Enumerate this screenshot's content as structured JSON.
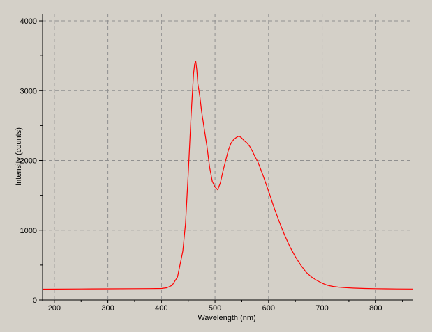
{
  "chart_data": {
    "type": "line",
    "title": "",
    "xlabel": "Wavelength (nm)",
    "ylabel": "Intensity (counts)",
    "xlim": [
      178,
      870
    ],
    "ylim": [
      0,
      4100
    ],
    "x_ticks": [
      200,
      300,
      400,
      500,
      600,
      700,
      800
    ],
    "y_ticks": [
      0,
      1000,
      2000,
      3000,
      4000
    ],
    "grid": true,
    "grid_style": "dashed",
    "background_color": "#d4d0c8",
    "line_color": "#ff0000",
    "series": [
      {
        "x": [
          178,
          250,
          300,
          350,
          380,
          400,
          410,
          420,
          430,
          440,
          445,
          450,
          455,
          458,
          460,
          462,
          464,
          466,
          468,
          470,
          472,
          475,
          478,
          480,
          485,
          490,
          495,
          500,
          505,
          510,
          515,
          520,
          525,
          530,
          535,
          540,
          545,
          550,
          555,
          560,
          565,
          570,
          575,
          580,
          590,
          600,
          610,
          620,
          630,
          640,
          650,
          660,
          670,
          680,
          690,
          700,
          710,
          720,
          730,
          740,
          760,
          780,
          800,
          820,
          840,
          870
        ],
        "y": [
          155,
          158,
          160,
          162,
          163,
          165,
          175,
          210,
          330,
          700,
          1100,
          1800,
          2600,
          3000,
          3250,
          3380,
          3420,
          3300,
          3100,
          3000,
          2900,
          2700,
          2550,
          2450,
          2200,
          1900,
          1700,
          1620,
          1580,
          1680,
          1850,
          2000,
          2150,
          2250,
          2300,
          2330,
          2350,
          2320,
          2280,
          2250,
          2200,
          2130,
          2050,
          1980,
          1780,
          1560,
          1330,
          1120,
          930,
          760,
          620,
          500,
          400,
          330,
          280,
          240,
          210,
          195,
          185,
          178,
          170,
          165,
          162,
          160,
          158,
          157
        ]
      }
    ]
  }
}
